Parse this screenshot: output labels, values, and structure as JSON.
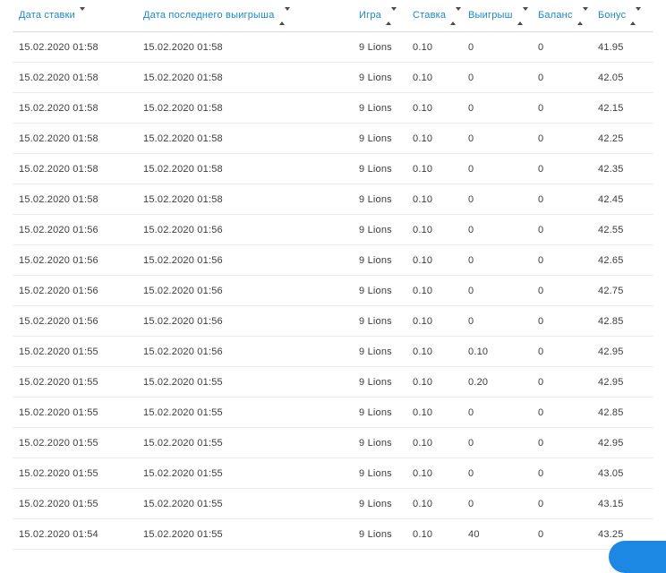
{
  "colors": {
    "header_link": "#1e87c9",
    "body_text": "#3c3c3c",
    "row_divider": "#ededed",
    "header_divider": "#dcdcdc",
    "fab_blue": "#1d87e4"
  },
  "table": {
    "columns": [
      {
        "key": "bet_date",
        "label": "Дата ставки",
        "sort": "desc",
        "icon": "sort-desc-icon"
      },
      {
        "key": "last_win_date",
        "label": "Дата последнего выигрыша",
        "sort": "both",
        "icon": "sort-both-icon"
      },
      {
        "key": "game",
        "label": "Игра",
        "sort": "both",
        "icon": "sort-both-icon"
      },
      {
        "key": "stake",
        "label": "Ставка",
        "sort": "both",
        "icon": "sort-both-icon"
      },
      {
        "key": "win",
        "label": "Выигрыш",
        "sort": "both",
        "icon": "sort-both-icon"
      },
      {
        "key": "balance",
        "label": "Баланс",
        "sort": "both",
        "icon": "sort-both-icon"
      },
      {
        "key": "bonus",
        "label": "Бонус",
        "sort": "both",
        "icon": "sort-both-icon"
      }
    ],
    "rows": [
      {
        "bet_date": "15.02.2020 01:58",
        "last_win_date": "15.02.2020 01:58",
        "game": "9 Lions",
        "stake": "0.10",
        "win": "0",
        "balance": "0",
        "bonus": "41.95"
      },
      {
        "bet_date": "15.02.2020 01:58",
        "last_win_date": "15.02.2020 01:58",
        "game": "9 Lions",
        "stake": "0.10",
        "win": "0",
        "balance": "0",
        "bonus": "42.05"
      },
      {
        "bet_date": "15.02.2020 01:58",
        "last_win_date": "15.02.2020 01:58",
        "game": "9 Lions",
        "stake": "0.10",
        "win": "0",
        "balance": "0",
        "bonus": "42.15"
      },
      {
        "bet_date": "15.02.2020 01:58",
        "last_win_date": "15.02.2020 01:58",
        "game": "9 Lions",
        "stake": "0.10",
        "win": "0",
        "balance": "0",
        "bonus": "42.25"
      },
      {
        "bet_date": "15.02.2020 01:58",
        "last_win_date": "15.02.2020 01:58",
        "game": "9 Lions",
        "stake": "0.10",
        "win": "0",
        "balance": "0",
        "bonus": "42.35"
      },
      {
        "bet_date": "15.02.2020 01:58",
        "last_win_date": "15.02.2020 01:58",
        "game": "9 Lions",
        "stake": "0.10",
        "win": "0",
        "balance": "0",
        "bonus": "42.45"
      },
      {
        "bet_date": "15.02.2020 01:56",
        "last_win_date": "15.02.2020 01:56",
        "game": "9 Lions",
        "stake": "0.10",
        "win": "0",
        "balance": "0",
        "bonus": "42.55"
      },
      {
        "bet_date": "15.02.2020 01:56",
        "last_win_date": "15.02.2020 01:56",
        "game": "9 Lions",
        "stake": "0.10",
        "win": "0",
        "balance": "0",
        "bonus": "42.65"
      },
      {
        "bet_date": "15.02.2020 01:56",
        "last_win_date": "15.02.2020 01:56",
        "game": "9 Lions",
        "stake": "0.10",
        "win": "0",
        "balance": "0",
        "bonus": "42.75"
      },
      {
        "bet_date": "15.02.2020 01:56",
        "last_win_date": "15.02.2020 01:56",
        "game": "9 Lions",
        "stake": "0.10",
        "win": "0",
        "balance": "0",
        "bonus": "42.85"
      },
      {
        "bet_date": "15.02.2020 01:55",
        "last_win_date": "15.02.2020 01:56",
        "game": "9 Lions",
        "stake": "0.10",
        "win": "0.10",
        "balance": "0",
        "bonus": "42.95"
      },
      {
        "bet_date": "15.02.2020 01:55",
        "last_win_date": "15.02.2020 01:55",
        "game": "9 Lions",
        "stake": "0.10",
        "win": "0.20",
        "balance": "0",
        "bonus": "42.95"
      },
      {
        "bet_date": "15.02.2020 01:55",
        "last_win_date": "15.02.2020 01:55",
        "game": "9 Lions",
        "stake": "0.10",
        "win": "0",
        "balance": "0",
        "bonus": "42.85"
      },
      {
        "bet_date": "15.02.2020 01:55",
        "last_win_date": "15.02.2020 01:55",
        "game": "9 Lions",
        "stake": "0.10",
        "win": "0",
        "balance": "0",
        "bonus": "42.95"
      },
      {
        "bet_date": "15.02.2020 01:55",
        "last_win_date": "15.02.2020 01:55",
        "game": "9 Lions",
        "stake": "0.10",
        "win": "0",
        "balance": "0",
        "bonus": "43.05"
      },
      {
        "bet_date": "15.02.2020 01:55",
        "last_win_date": "15.02.2020 01:55",
        "game": "9 Lions",
        "stake": "0.10",
        "win": "0",
        "balance": "0",
        "bonus": "43.15"
      },
      {
        "bet_date": "15.02.2020 01:54",
        "last_win_date": "15.02.2020 01:55",
        "game": "9 Lions",
        "stake": "0.10",
        "win": "40",
        "balance": "0",
        "bonus": "43.25"
      }
    ]
  }
}
